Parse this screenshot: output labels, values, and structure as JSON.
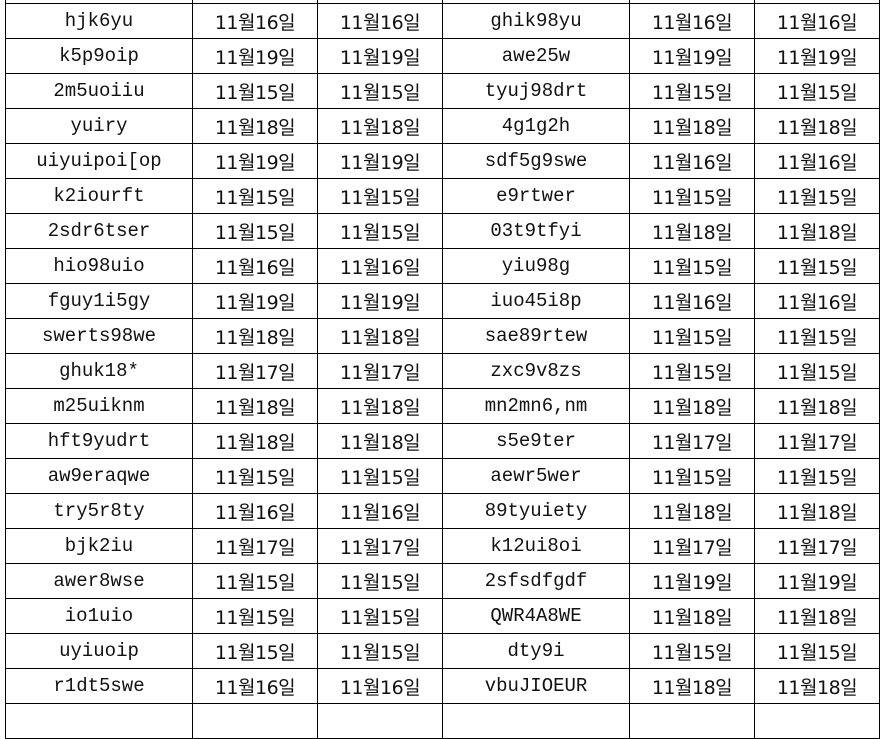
{
  "table": {
    "rows": [
      [
        "hjk6yu",
        "11월16일",
        "11월16일",
        "ghik98yu",
        "11월16일",
        "11월16일"
      ],
      [
        "k5p9oip",
        "11월19일",
        "11월19일",
        "awe25w",
        "11월19일",
        "11월19일"
      ],
      [
        "2m5uoiiu",
        "11월15일",
        "11월15일",
        "tyuj98drt",
        "11월15일",
        "11월15일"
      ],
      [
        "yuiry",
        "11월18일",
        "11월18일",
        "4g1g2h",
        "11월18일",
        "11월18일"
      ],
      [
        "uiyuipoi[op",
        "11월19일",
        "11월19일",
        "sdf5g9swe",
        "11월16일",
        "11월16일"
      ],
      [
        "k2iourft",
        "11월15일",
        "11월15일",
        "e9rtwer",
        "11월15일",
        "11월15일"
      ],
      [
        "2sdr6tser",
        "11월15일",
        "11월15일",
        "03t9tfyi",
        "11월18일",
        "11월18일"
      ],
      [
        "hio98uio",
        "11월16일",
        "11월16일",
        "yiu98g",
        "11월15일",
        "11월15일"
      ],
      [
        "fguy1i5gy",
        "11월19일",
        "11월19일",
        "iuo45i8p",
        "11월16일",
        "11월16일"
      ],
      [
        "swerts98we",
        "11월18일",
        "11월18일",
        "sae89rtew",
        "11월15일",
        "11월15일"
      ],
      [
        "ghuk18*",
        "11월17일",
        "11월17일",
        "zxc9v8zs",
        "11월15일",
        "11월15일"
      ],
      [
        "m25uiknm",
        "11월18일",
        "11월18일",
        "mn2mn6,nm",
        "11월18일",
        "11월18일"
      ],
      [
        "hft9yudrt",
        "11월18일",
        "11월18일",
        "s5e9ter",
        "11월17일",
        "11월17일"
      ],
      [
        "aw9eraqwe",
        "11월15일",
        "11월15일",
        "aewr5wer",
        "11월15일",
        "11월15일"
      ],
      [
        "try5r8ty",
        "11월16일",
        "11월16일",
        "89tyuiety",
        "11월18일",
        "11월18일"
      ],
      [
        "bjk2iu",
        "11월17일",
        "11월17일",
        "k12ui8oi",
        "11월17일",
        "11월17일"
      ],
      [
        "awer8wse",
        "11월15일",
        "11월15일",
        "2sfsdfgdf",
        "11월19일",
        "11월19일"
      ],
      [
        "io1uio",
        "11월15일",
        "11월15일",
        "QWR4A8WE",
        "11월18일",
        "11월18일"
      ],
      [
        "uyiuoip",
        "11월15일",
        "11월15일",
        "dty9i",
        "11월15일",
        "11월15일"
      ],
      [
        "r1dt5swe",
        "11월16일",
        "11월16일",
        "vbuJIOEUR",
        "11월18일",
        "11월18일"
      ]
    ]
  }
}
